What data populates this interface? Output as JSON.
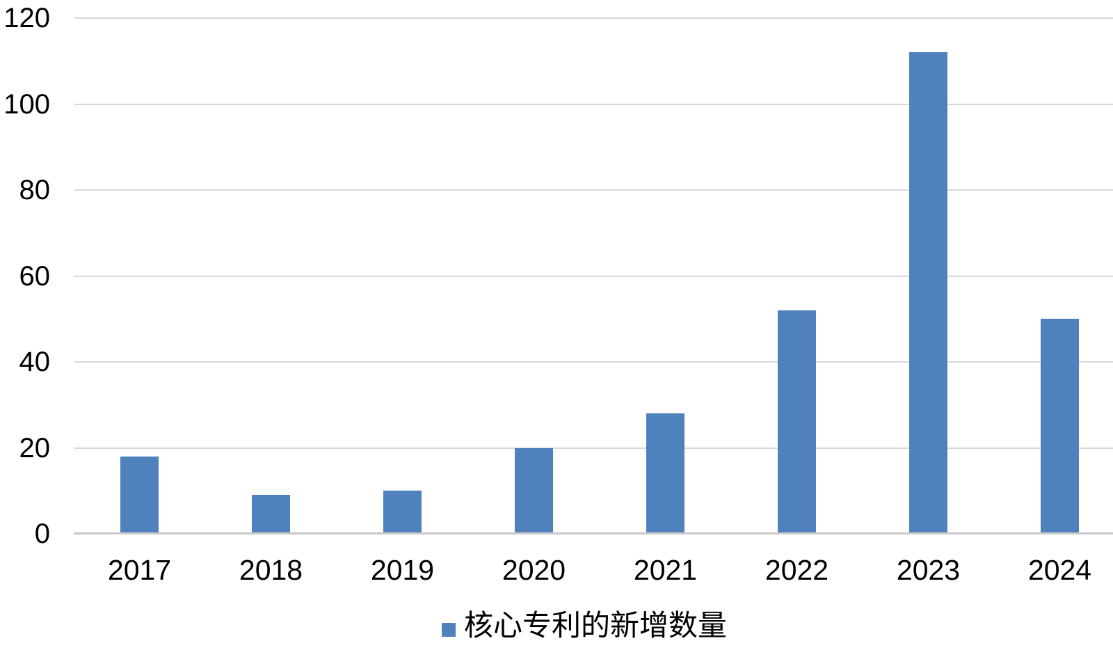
{
  "chart_data": {
    "type": "bar",
    "title": "",
    "xlabel": "",
    "ylabel": "",
    "categories": [
      "2017",
      "2018",
      "2019",
      "2020",
      "2021",
      "2022",
      "2023",
      "2024"
    ],
    "series": [
      {
        "name": "核心专利的新增数量",
        "values": [
          18,
          9,
          10,
          20,
          28,
          52,
          112,
          50
        ]
      }
    ],
    "ylim": [
      0,
      120
    ],
    "yticks": [
      0,
      20,
      40,
      60,
      80,
      100,
      120
    ],
    "grid": true,
    "legend_position": "bottom",
    "colors": {
      "bar": "#4f81bd",
      "gridline": "#d9d9d9",
      "axis_line": "#c9c9c9",
      "text": "#000000",
      "background": "#ffffff"
    }
  },
  "legend": {
    "label": "核心专利的新增数量"
  }
}
